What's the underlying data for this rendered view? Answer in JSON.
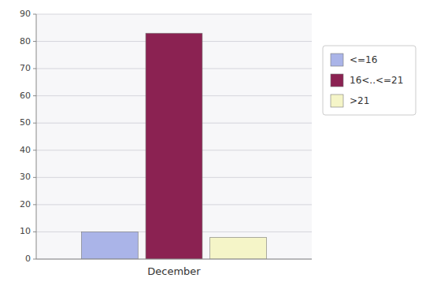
{
  "chart_data": {
    "type": "bar",
    "categories": [
      "December"
    ],
    "series": [
      {
        "name": "<=16",
        "color": "#aab4e8",
        "values": [
          10
        ]
      },
      {
        "name": "16<..<=21",
        "color": "#8b2252",
        "values": [
          83
        ]
      },
      {
        "name": ">21",
        "color": "#f5f5c8",
        "values": [
          8
        ]
      }
    ],
    "ylim": [
      0,
      90
    ],
    "yticks": [
      0,
      10,
      20,
      30,
      40,
      50,
      60,
      70,
      80,
      90
    ],
    "grid": true,
    "legend": "right"
  }
}
